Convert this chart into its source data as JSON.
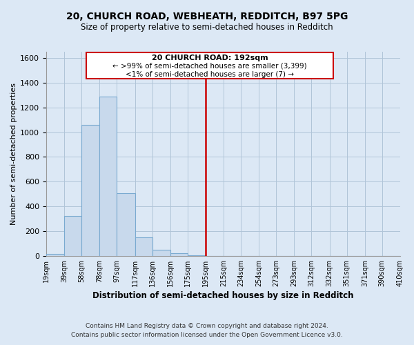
{
  "title": "20, CHURCH ROAD, WEBHEATH, REDDITCH, B97 5PG",
  "subtitle": "Size of property relative to semi-detached houses in Redditch",
  "xlabel": "Distribution of semi-detached houses by size in Redditch",
  "ylabel": "Number of semi-detached properties",
  "bin_labels": [
    "19sqm",
    "39sqm",
    "58sqm",
    "78sqm",
    "97sqm",
    "117sqm",
    "136sqm",
    "156sqm",
    "175sqm",
    "195sqm",
    "215sqm",
    "234sqm",
    "254sqm",
    "273sqm",
    "293sqm",
    "312sqm",
    "332sqm",
    "351sqm",
    "371sqm",
    "390sqm",
    "410sqm"
  ],
  "bin_edges": [
    19,
    39,
    58,
    78,
    97,
    117,
    136,
    156,
    175,
    195,
    215,
    234,
    254,
    273,
    293,
    312,
    332,
    351,
    371,
    390,
    410
  ],
  "bar_heights": [
    15,
    325,
    1060,
    1290,
    505,
    150,
    50,
    20,
    5,
    0,
    0,
    0,
    0,
    0,
    0,
    0,
    0,
    0,
    0,
    0
  ],
  "bar_color": "#c8d9ec",
  "bar_edge_color": "#7aaad0",
  "property_line_x": 195,
  "property_line_color": "#cc0000",
  "ylim": [
    0,
    1650
  ],
  "yticks": [
    0,
    200,
    400,
    600,
    800,
    1000,
    1200,
    1400,
    1600
  ],
  "annotation_title": "20 CHURCH ROAD: 192sqm",
  "annotation_line1": "← >99% of semi-detached houses are smaller (3,399)",
  "annotation_line2": "<1% of semi-detached houses are larger (7) →",
  "annotation_box_color": "#ffffff",
  "annotation_box_edge": "#cc0000",
  "footnote1": "Contains HM Land Registry data © Crown copyright and database right 2024.",
  "footnote2": "Contains public sector information licensed under the Open Government Licence v3.0.",
  "bg_color": "#dce8f5",
  "plot_bg_color": "#dce8f5",
  "grid_color": "#b0c4d8"
}
